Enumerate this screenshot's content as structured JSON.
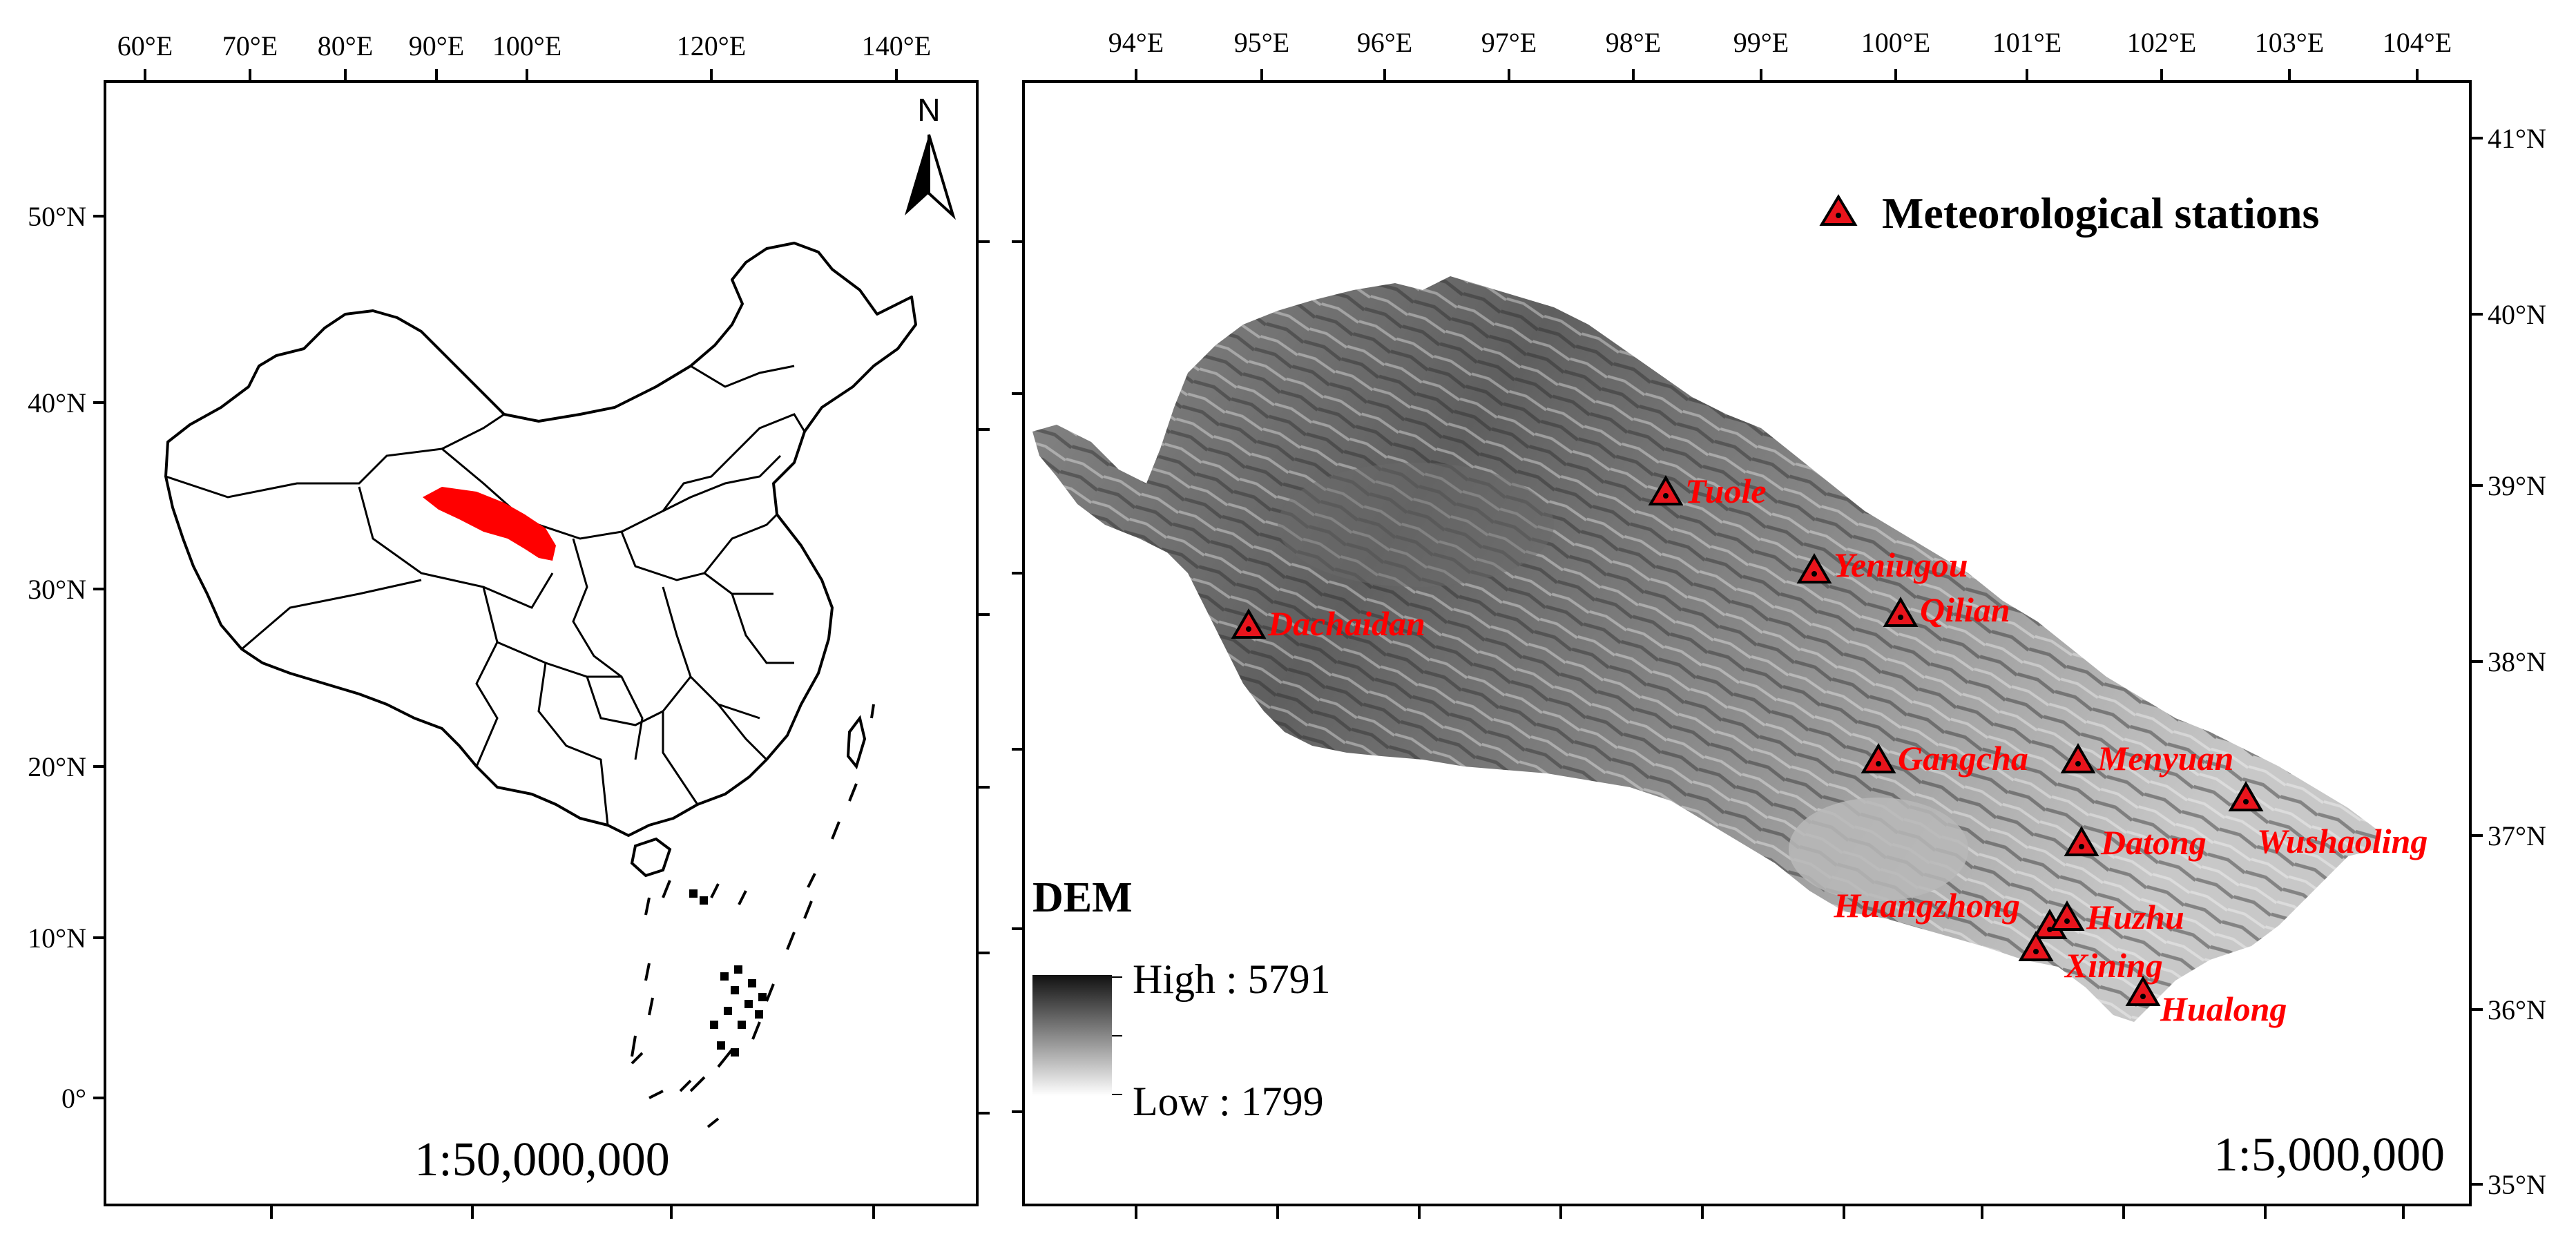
{
  "left_map": {
    "top_lon_labels": [
      "60°E",
      "70°E",
      "80°E",
      "90°E",
      "100°E",
      "120°E",
      "140°E"
    ],
    "left_lat_labels": [
      "50°N",
      "40°N",
      "30°N",
      "20°N",
      "10°N",
      "0°"
    ],
    "scale": "1:50,000,000",
    "north_label": "N",
    "highlight_color": "#ff0000"
  },
  "right_map": {
    "top_lon_labels": [
      "94°E",
      "95°E",
      "96°E",
      "97°E",
      "98°E",
      "99°E",
      "100°E",
      "101°E",
      "102°E",
      "103°E",
      "104°E"
    ],
    "right_lat_labels": [
      "41°N",
      "40°N",
      "39°N",
      "38°N",
      "37°N",
      "36°N",
      "35°N"
    ],
    "scale": "1:5,000,000",
    "legend_label": "Meteorological stations",
    "dem": {
      "title": "DEM",
      "high": "High : 5791",
      "low": "Low : 1799"
    },
    "station_color": "#e8141c",
    "stations": [
      "Tuole",
      "Yeniugou",
      "Qilian",
      "Dachaidan",
      "Gangcha",
      "Menyuan",
      "Wushaoling",
      "Datong",
      "Huangzhong",
      "Huzhu",
      "Xining",
      "Hualong"
    ]
  }
}
